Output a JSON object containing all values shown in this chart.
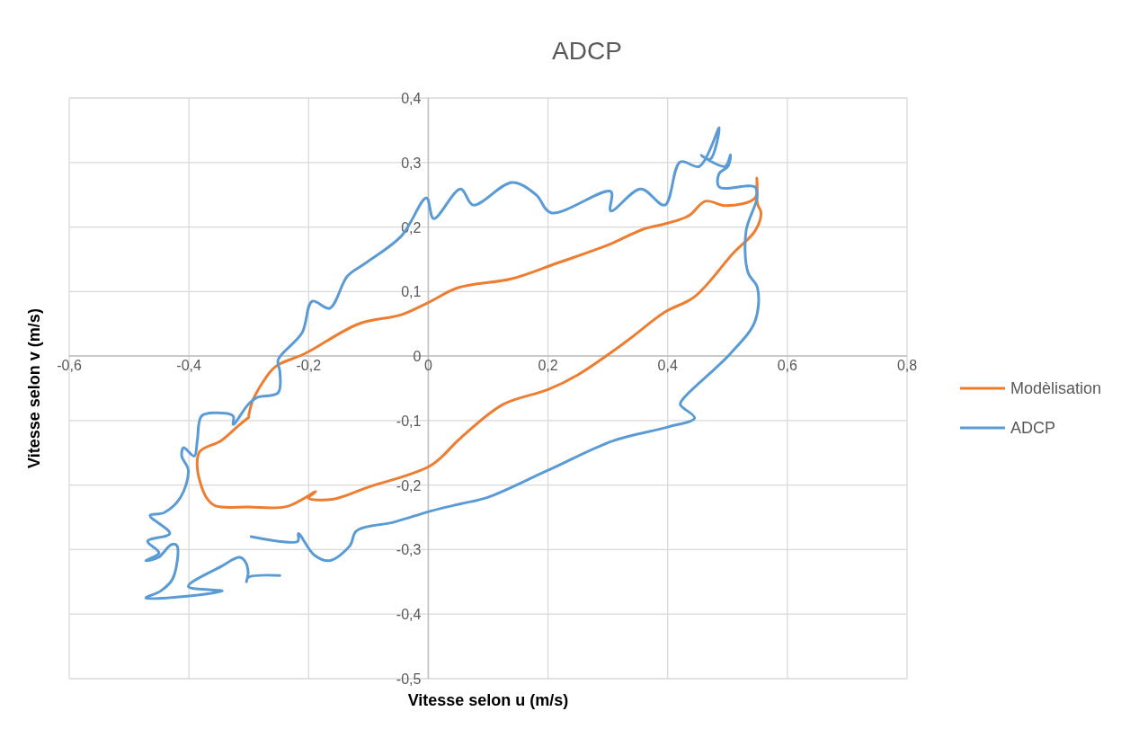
{
  "chart_data": {
    "type": "line",
    "title": "ADCP",
    "xlabel": "Vitesse selon u (m/s)",
    "ylabel": "Vitesse selon v (m/s)",
    "xlim": [
      -0.6,
      0.8
    ],
    "ylim": [
      -0.5,
      0.4
    ],
    "xticks": [
      {
        "value": -0.6,
        "label": "-0,6"
      },
      {
        "value": -0.4,
        "label": "-0,4"
      },
      {
        "value": -0.2,
        "label": "-0,2"
      },
      0,
      {
        "value": 0.2,
        "label": "0,2"
      },
      {
        "value": 0.4,
        "label": "0,4"
      },
      {
        "value": 0.6,
        "label": "0,6"
      },
      {
        "value": 0.8,
        "label": "0,8"
      }
    ],
    "yticks": [
      {
        "value": -0.5,
        "label": "-0,5"
      },
      {
        "value": -0.4,
        "label": "-0,4"
      },
      {
        "value": -0.3,
        "label": "-0,3"
      },
      {
        "value": -0.2,
        "label": "-0,2"
      },
      {
        "value": -0.1,
        "label": "-0,1"
      },
      0,
      {
        "value": 0.1,
        "label": "0,1"
      },
      {
        "value": 0.2,
        "label": "0,2"
      },
      {
        "value": 0.3,
        "label": "0,3"
      },
      {
        "value": 0.4,
        "label": "0,4"
      }
    ],
    "grid": true,
    "legend": "right",
    "marker": "none",
    "line_style": "solid",
    "series": [
      {
        "name": "Modèlisation",
        "color": "#ed7d31",
        "x": [
          -0.3,
          -0.316,
          -0.346,
          -0.382,
          -0.386,
          -0.371,
          -0.356,
          -0.3,
          -0.236,
          -0.188,
          -0.2,
          -0.16,
          -0.1,
          0.005,
          0.054,
          0.125,
          0.2,
          0.25,
          0.33,
          0.395,
          0.445,
          0.51,
          0.546,
          0.556,
          0.55,
          0.549,
          0.546,
          0.498,
          0.463,
          0.436,
          0.4,
          0.36,
          0.3,
          0.215,
          0.14,
          0.05,
          0,
          -0.045,
          -0.116,
          -0.206,
          -0.25,
          -0.262,
          -0.292,
          -0.3
        ],
        "values": [
          -0.095,
          -0.107,
          -0.131,
          -0.148,
          -0.173,
          -0.219,
          -0.232,
          -0.234,
          -0.233,
          -0.21,
          -0.22,
          -0.222,
          -0.203,
          -0.169,
          -0.127,
          -0.075,
          -0.052,
          -0.029,
          0.022,
          0.068,
          0.092,
          0.16,
          0.194,
          0.222,
          0.236,
          0.276,
          0.245,
          0.233,
          0.24,
          0.218,
          0.206,
          0.197,
          0.172,
          0.144,
          0.12,
          0.106,
          0.083,
          0.064,
          0.05,
          0.004,
          -0.013,
          -0.022,
          -0.066,
          -0.092
        ]
      },
      {
        "name": "ADCP",
        "color": "#5b9bd5",
        "x": [
          -0.248,
          -0.301,
          -0.304,
          -0.301,
          -0.307,
          -0.316,
          -0.346,
          -0.401,
          -0.344,
          -0.472,
          -0.447,
          -0.427,
          -0.42,
          -0.429,
          -0.451,
          -0.472,
          -0.45,
          -0.469,
          -0.432,
          -0.465,
          -0.442,
          -0.414,
          -0.401,
          -0.412,
          -0.409,
          -0.391,
          -0.386,
          -0.379,
          -0.356,
          -0.326,
          -0.326,
          -0.301,
          -0.286,
          -0.251,
          -0.248,
          -0.251,
          -0.211,
          -0.194,
          -0.165,
          -0.135,
          -0.105,
          -0.045,
          -0.003,
          0.009,
          0.054,
          0.075,
          0.14,
          0.18,
          0.205,
          0.305,
          0.305,
          0.355,
          0.395,
          0.421,
          0.453,
          0.486,
          0.471,
          0.456,
          0.496,
          0.505,
          0.501,
          0.486,
          0.486,
          0.546,
          0.549,
          0.531,
          0.534,
          0.55,
          0.546,
          0.505,
          0.426,
          0.421,
          0.445,
          0.4,
          0.31,
          0.2,
          0.099,
          0.054,
          0.005,
          -0.056,
          -0.12,
          -0.131,
          -0.165,
          -0.191,
          -0.217,
          -0.218,
          -0.296
        ],
        "values": [
          -0.34,
          -0.343,
          -0.35,
          -0.336,
          -0.317,
          -0.312,
          -0.326,
          -0.357,
          -0.364,
          -0.375,
          -0.364,
          -0.345,
          -0.294,
          -0.292,
          -0.312,
          -0.317,
          -0.305,
          -0.287,
          -0.275,
          -0.247,
          -0.243,
          -0.219,
          -0.177,
          -0.155,
          -0.142,
          -0.155,
          -0.131,
          -0.093,
          -0.088,
          -0.093,
          -0.106,
          -0.075,
          -0.064,
          -0.057,
          -0.024,
          -0.006,
          0.036,
          0.085,
          0.074,
          0.124,
          0.144,
          0.186,
          0.245,
          0.213,
          0.259,
          0.234,
          0.269,
          0.25,
          0.222,
          0.255,
          0.225,
          0.259,
          0.234,
          0.301,
          0.294,
          0.354,
          0.305,
          0.311,
          0.294,
          0.312,
          0.294,
          0.283,
          0.262,
          0.262,
          0.245,
          0.194,
          0.13,
          0.106,
          0.054,
          0.004,
          -0.066,
          -0.075,
          -0.096,
          -0.11,
          -0.131,
          -0.177,
          -0.219,
          -0.229,
          -0.24,
          -0.257,
          -0.271,
          -0.294,
          -0.317,
          -0.308,
          -0.275,
          -0.287,
          -0.28
        ]
      }
    ]
  }
}
